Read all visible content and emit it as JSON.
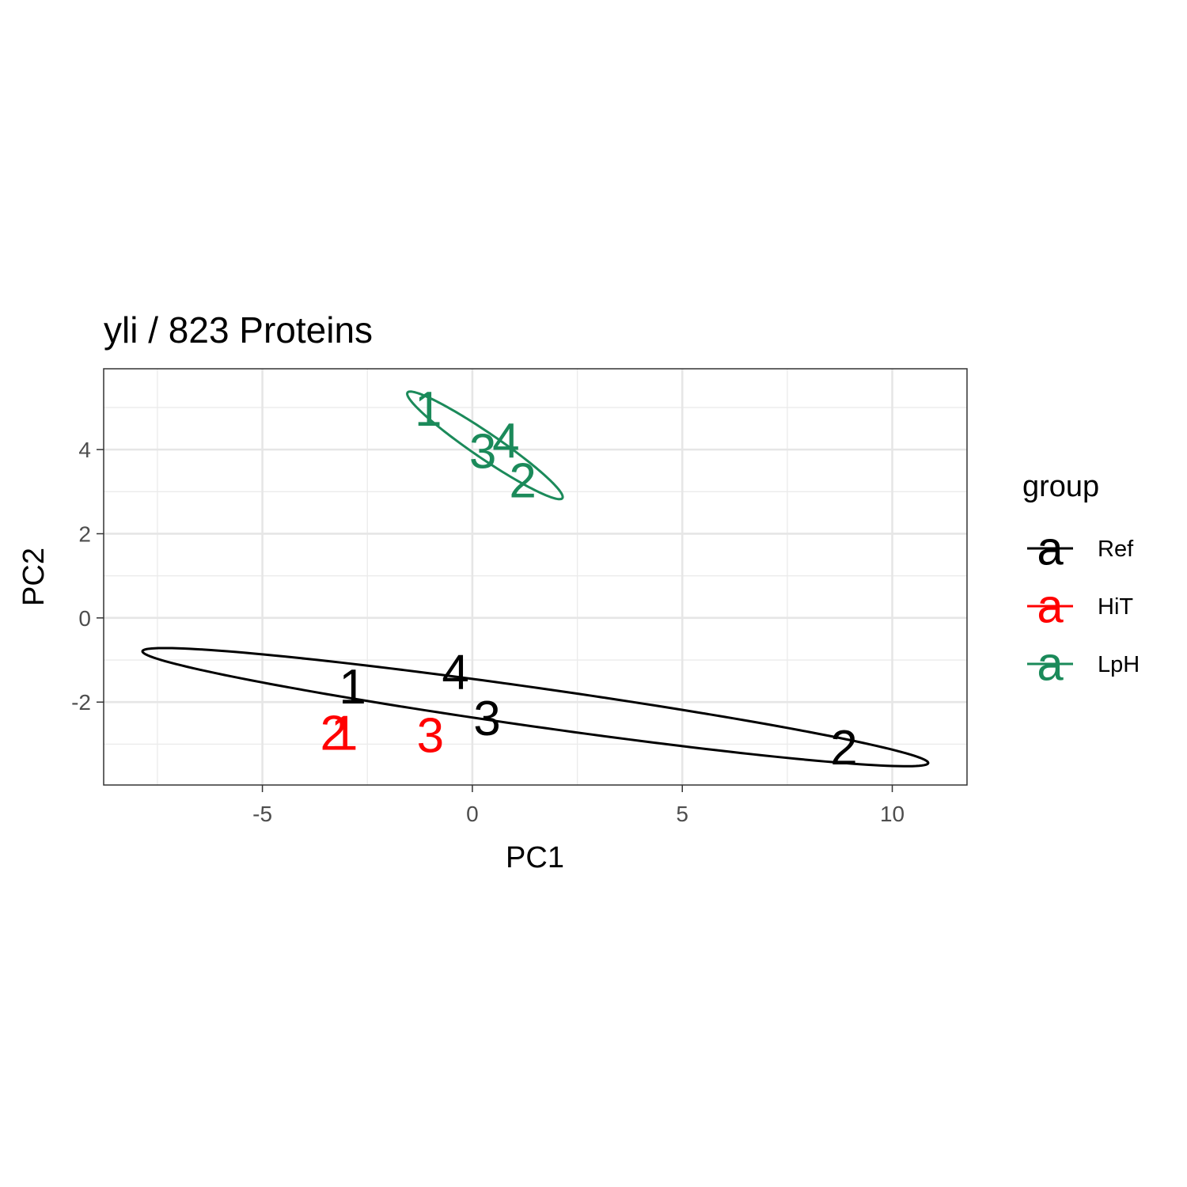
{
  "chart_data": {
    "type": "scatter",
    "title": "yli /  823  Proteins",
    "xlabel": "PC1",
    "ylabel": "PC2",
    "xlim": [
      -8.78,
      11.78
    ],
    "ylim": [
      -3.97,
      5.92
    ],
    "x_ticks": [
      -5,
      0,
      5,
      10
    ],
    "x_tick_labels": [
      "-5",
      "0",
      "5",
      "10"
    ],
    "y_ticks": [
      -2,
      0,
      2,
      4
    ],
    "y_tick_labels": [
      "-2",
      "0",
      "2",
      "4"
    ],
    "grid": true,
    "legend": {
      "title": "group",
      "position": "right",
      "key_glyph": "a"
    },
    "series": [
      {
        "name": "Ref",
        "color": "#000000",
        "points": [
          {
            "label": "1",
            "x": -2.85,
            "y": -1.65
          },
          {
            "label": "2",
            "x": 8.85,
            "y": -3.1
          },
          {
            "label": "3",
            "x": 0.35,
            "y": -2.4
          },
          {
            "label": "4",
            "x": -0.4,
            "y": -1.3
          }
        ],
        "ellipse": {
          "center": [
            1.5,
            -2.12
          ],
          "semi_major": 9.45,
          "semi_minor": 0.46,
          "angle_deg": -8.08
        }
      },
      {
        "name": "HiT",
        "color": "#ff0000",
        "points": [
          {
            "label": "1",
            "x": -3.05,
            "y": -2.75
          },
          {
            "label": "2",
            "x": -3.3,
            "y": -2.75
          },
          {
            "label": "3",
            "x": -1.0,
            "y": -2.8
          }
        ]
      },
      {
        "name": "LpH",
        "color": "#1b8a5a",
        "points": [
          {
            "label": "1",
            "x": -1.05,
            "y": 4.95
          },
          {
            "label": "2",
            "x": 1.2,
            "y": 3.25
          },
          {
            "label": "3",
            "x": 0.25,
            "y": 3.95
          },
          {
            "label": "4",
            "x": 0.8,
            "y": 4.2
          }
        ],
        "ellipse": {
          "center": [
            0.3,
            4.1
          ],
          "semi_major": 2.23,
          "semi_minor": 0.3,
          "angle_deg": -34.22
        }
      }
    ]
  }
}
